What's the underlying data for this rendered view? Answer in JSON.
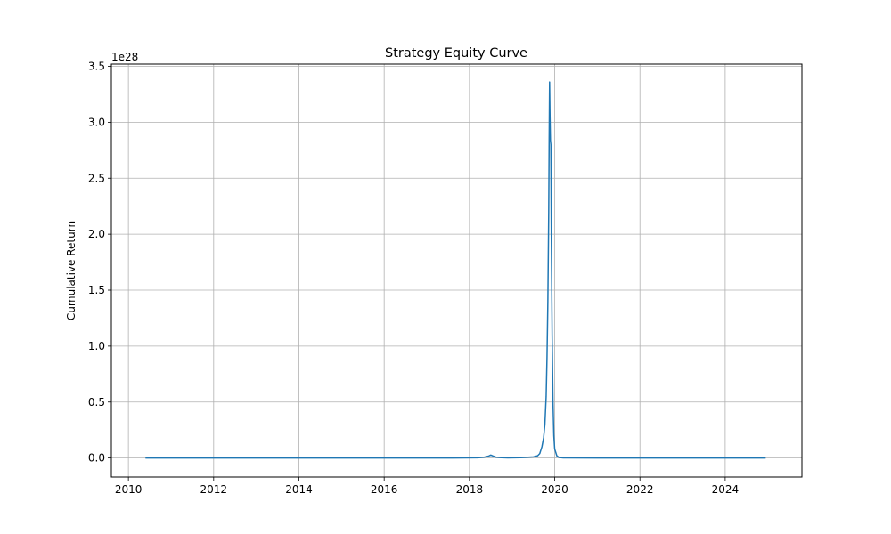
{
  "chart_data": {
    "type": "line",
    "title": "Strategy Equity Curve",
    "xlabel": "",
    "ylabel": "Cumulative Return",
    "y_offset_label": "1e28",
    "grid": true,
    "legend": "none",
    "xlim": [
      2009.6,
      2025.8
    ],
    "ylim": [
      -0.17,
      3.52
    ],
    "x_ticks": [
      2010,
      2012,
      2014,
      2016,
      2018,
      2020,
      2022,
      2024
    ],
    "x_tick_labels": [
      "2010",
      "2012",
      "2014",
      "2016",
      "2018",
      "2020",
      "2022",
      "2024"
    ],
    "y_ticks": [
      0.0,
      0.5,
      1.0,
      1.5,
      2.0,
      2.5,
      3.0,
      3.5
    ],
    "y_tick_labels": [
      "0.0",
      "0.5",
      "1.0",
      "1.5",
      "2.0",
      "2.5",
      "3.0",
      "3.5"
    ],
    "series": [
      {
        "color": "#1f77b4",
        "x": [
          2010.4,
          2012,
          2014,
          2016,
          2017.5,
          2018.2,
          2018.35,
          2018.45,
          2018.5,
          2018.55,
          2018.62,
          2018.75,
          2018.9,
          2019.2,
          2019.5,
          2019.6,
          2019.65,
          2019.7,
          2019.74,
          2019.77,
          2019.8,
          2019.82,
          2019.84,
          2019.86,
          2019.87,
          2019.88,
          2019.89,
          2019.9,
          2019.91,
          2019.92,
          2019.94,
          2019.96,
          2019.98,
          2020.0,
          2020.05,
          2020.1,
          2020.2,
          2021,
          2022,
          2023,
          2024,
          2024.95
        ],
        "y": [
          0.0,
          0.0,
          0.0,
          0.0,
          0.0,
          0.002,
          0.008,
          0.017,
          0.026,
          0.018,
          0.008,
          0.003,
          0.001,
          0.003,
          0.01,
          0.02,
          0.04,
          0.1,
          0.18,
          0.3,
          0.55,
          0.9,
          1.4,
          2.2,
          2.85,
          3.36,
          3.05,
          2.84,
          2.8,
          2.0,
          1.1,
          0.5,
          0.2,
          0.08,
          0.02,
          0.005,
          0.001,
          0.0,
          0.0,
          0.0,
          0.0,
          0.0
        ]
      }
    ]
  }
}
